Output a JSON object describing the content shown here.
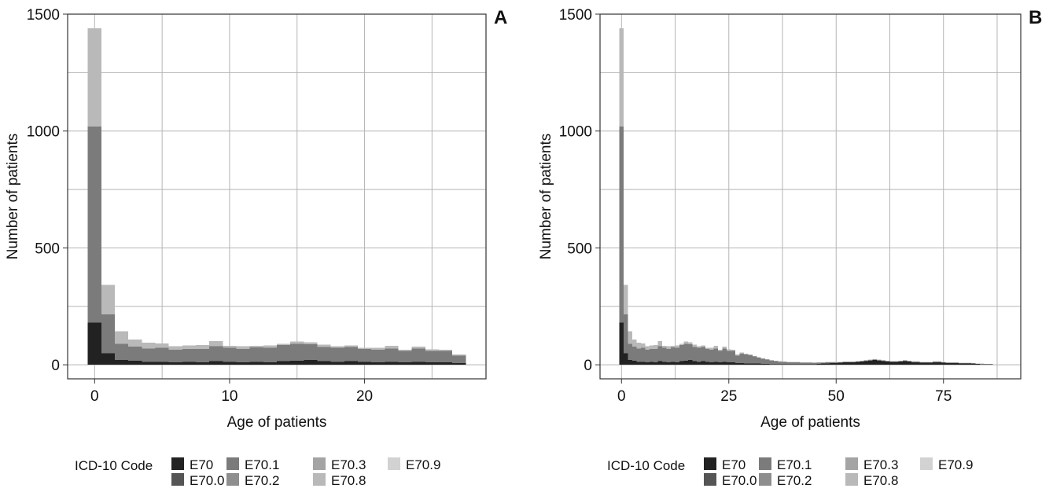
{
  "chart_data": [
    {
      "type": "bar",
      "stacked": true,
      "panel_label": "A",
      "xlabel": "Age of patients",
      "ylabel": "Number of patients",
      "xlim": [
        -2,
        29
      ],
      "ylim": [
        -60,
        1500
      ],
      "x_ticks": [
        0,
        10,
        20
      ],
      "y_ticks": [
        0,
        500,
        1000,
        1500
      ],
      "grid": true,
      "bin_width": 1,
      "x": [
        0,
        1,
        2,
        3,
        4,
        5,
        6,
        7,
        8,
        9,
        10,
        11,
        12,
        13,
        14,
        15,
        16,
        17,
        18,
        19,
        20,
        21,
        22,
        23,
        24,
        25,
        26,
        27
      ],
      "series": [
        {
          "name": "E70",
          "color": "#222222",
          "values": [
            180,
            50,
            20,
            18,
            12,
            12,
            10,
            12,
            10,
            15,
            12,
            10,
            12,
            10,
            15,
            18,
            20,
            15,
            12,
            15,
            12,
            10,
            12,
            10,
            12,
            10,
            10,
            8
          ]
        },
        {
          "name": "E70.0",
          "color": "#555555",
          "values": [
            0,
            0,
            0,
            0,
            0,
            0,
            0,
            0,
            0,
            0,
            0,
            0,
            0,
            0,
            0,
            0,
            0,
            0,
            0,
            0,
            0,
            0,
            0,
            0,
            0,
            0,
            0,
            0
          ]
        },
        {
          "name": "E70.1",
          "color": "#7b7b7b",
          "values": [
            840,
            165,
            70,
            60,
            58,
            60,
            55,
            56,
            58,
            65,
            60,
            58,
            62,
            63,
            70,
            72,
            68,
            62,
            60,
            62,
            55,
            55,
            58,
            50,
            58,
            50,
            50,
            32
          ]
        },
        {
          "name": "E70.2",
          "color": "#8e8e8e",
          "values": [
            0,
            0,
            0,
            0,
            0,
            0,
            0,
            0,
            0,
            0,
            0,
            0,
            0,
            0,
            0,
            0,
            0,
            0,
            0,
            0,
            0,
            0,
            0,
            0,
            0,
            0,
            0,
            0
          ]
        },
        {
          "name": "E70.3",
          "color": "#a4a4a4",
          "values": [
            0,
            0,
            0,
            0,
            0,
            0,
            0,
            0,
            0,
            0,
            0,
            0,
            0,
            0,
            0,
            0,
            0,
            0,
            0,
            0,
            0,
            0,
            0,
            0,
            0,
            0,
            0,
            0
          ]
        },
        {
          "name": "E70.8",
          "color": "#b9b9b9",
          "values": [
            420,
            127,
            53,
            30,
            25,
            20,
            15,
            15,
            17,
            22,
            10,
            12,
            8,
            10,
            5,
            10,
            8,
            10,
            8,
            6,
            6,
            8,
            12,
            5,
            8,
            6,
            5,
            5
          ]
        },
        {
          "name": "E70.9",
          "color": "#d2d2d2",
          "values": [
            0,
            0,
            0,
            0,
            0,
            0,
            0,
            0,
            0,
            0,
            0,
            0,
            0,
            0,
            0,
            0,
            0,
            0,
            0,
            0,
            0,
            0,
            0,
            0,
            0,
            0,
            0,
            0
          ]
        }
      ]
    },
    {
      "type": "bar",
      "stacked": true,
      "panel_label": "B",
      "xlabel": "Age of patients",
      "ylabel": "Number of patients",
      "xlim": [
        -5,
        93
      ],
      "ylim": [
        -60,
        1500
      ],
      "x_ticks": [
        0,
        25,
        50,
        75
      ],
      "y_ticks": [
        0,
        500,
        1000,
        1500
      ],
      "grid": true,
      "bin_width": 1,
      "x": [
        0,
        1,
        2,
        3,
        4,
        5,
        6,
        7,
        8,
        9,
        10,
        11,
        12,
        13,
        14,
        15,
        16,
        17,
        18,
        19,
        20,
        21,
        22,
        23,
        24,
        25,
        26,
        27,
        28,
        29,
        30,
        31,
        32,
        33,
        34,
        35,
        36,
        37,
        38,
        39,
        40,
        41,
        42,
        43,
        44,
        45,
        46,
        47,
        48,
        49,
        50,
        51,
        52,
        53,
        54,
        55,
        56,
        57,
        58,
        59,
        60,
        61,
        62,
        63,
        64,
        65,
        66,
        67,
        68,
        69,
        70,
        71,
        72,
        73,
        74,
        75,
        76,
        77,
        78,
        79,
        80,
        81,
        82,
        83,
        84,
        85,
        86
      ],
      "series": [
        {
          "name": "E70",
          "color": "#222222",
          "values": [
            180,
            50,
            20,
            18,
            12,
            12,
            10,
            12,
            10,
            15,
            12,
            10,
            12,
            10,
            15,
            18,
            20,
            15,
            12,
            15,
            12,
            10,
            12,
            10,
            12,
            10,
            10,
            8,
            8,
            6,
            6,
            5,
            5,
            4,
            4,
            3,
            3,
            3,
            2,
            2,
            2,
            2,
            2,
            3,
            3,
            3,
            4,
            5,
            6,
            7,
            8,
            9,
            10,
            10,
            10,
            12,
            14,
            16,
            18,
            20,
            18,
            16,
            14,
            12,
            12,
            14,
            16,
            14,
            12,
            12,
            10,
            10,
            10,
            12,
            12,
            10,
            8,
            8,
            8,
            6,
            6,
            6,
            5,
            4,
            3,
            2,
            2
          ]
        },
        {
          "name": "E70.0",
          "color": "#555555",
          "values": [
            0,
            0,
            0,
            0,
            0,
            0,
            0,
            0,
            0,
            0,
            0,
            0,
            0,
            0,
            0,
            0,
            0,
            0,
            0,
            0,
            0,
            0,
            0,
            0,
            0,
            0,
            0,
            0,
            0,
            0,
            0,
            0,
            0,
            0,
            0,
            0,
            0,
            0,
            0,
            0,
            0,
            0,
            0,
            0,
            0,
            0,
            0,
            0,
            0,
            0,
            0,
            0,
            0,
            0,
            0,
            0,
            0,
            0,
            0,
            0,
            0,
            0,
            0,
            0,
            0,
            0,
            0,
            0,
            0,
            0,
            0,
            0,
            0,
            0,
            0,
            0,
            0,
            0,
            0,
            0,
            0,
            0,
            0,
            0,
            0,
            0,
            0
          ]
        },
        {
          "name": "E70.1",
          "color": "#7b7b7b",
          "values": [
            840,
            165,
            70,
            60,
            58,
            60,
            55,
            56,
            58,
            65,
            60,
            58,
            62,
            63,
            70,
            72,
            68,
            62,
            60,
            62,
            55,
            55,
            58,
            50,
            58,
            50,
            50,
            32,
            40,
            38,
            35,
            30,
            25,
            22,
            18,
            15,
            12,
            10,
            10,
            8,
            8,
            8,
            7,
            6,
            6,
            5,
            5,
            4,
            4,
            3,
            3,
            2,
            2,
            2,
            2,
            2,
            2,
            2,
            2,
            2,
            2,
            2,
            2,
            2,
            2,
            2,
            2,
            2,
            1,
            1,
            1,
            1,
            1,
            1,
            1,
            1,
            1,
            1,
            1,
            1,
            1,
            1,
            0,
            0,
            0,
            0,
            0
          ]
        },
        {
          "name": "E70.2",
          "color": "#8e8e8e",
          "values": [
            0,
            0,
            0,
            0,
            0,
            0,
            0,
            0,
            0,
            0,
            0,
            0,
            0,
            0,
            0,
            0,
            0,
            0,
            0,
            0,
            0,
            0,
            0,
            0,
            0,
            0,
            0,
            0,
            0,
            0,
            0,
            0,
            0,
            0,
            0,
            0,
            0,
            0,
            0,
            0,
            0,
            0,
            0,
            0,
            0,
            0,
            0,
            0,
            0,
            0,
            0,
            0,
            0,
            0,
            0,
            0,
            0,
            0,
            0,
            0,
            0,
            0,
            0,
            0,
            0,
            0,
            0,
            0,
            0,
            0,
            0,
            0,
            0,
            0,
            0,
            0,
            0,
            0,
            0,
            0,
            0,
            0,
            0,
            0,
            0,
            0,
            0
          ]
        },
        {
          "name": "E70.3",
          "color": "#a4a4a4",
          "values": [
            0,
            0,
            0,
            0,
            0,
            0,
            0,
            0,
            0,
            0,
            0,
            0,
            0,
            0,
            0,
            0,
            0,
            0,
            0,
            0,
            0,
            0,
            0,
            0,
            0,
            0,
            0,
            0,
            0,
            0,
            0,
            0,
            0,
            0,
            0,
            0,
            0,
            0,
            0,
            0,
            0,
            0,
            0,
            0,
            0,
            0,
            0,
            0,
            0,
            0,
            0,
            0,
            0,
            0,
            0,
            0,
            0,
            0,
            0,
            0,
            0,
            0,
            0,
            0,
            0,
            0,
            0,
            0,
            0,
            0,
            0,
            0,
            0,
            0,
            0,
            0,
            0,
            0,
            0,
            0,
            0,
            0,
            0,
            0,
            0,
            0,
            0
          ]
        },
        {
          "name": "E70.8",
          "color": "#b9b9b9",
          "values": [
            420,
            127,
            53,
            30,
            25,
            20,
            15,
            15,
            17,
            22,
            10,
            12,
            8,
            10,
            5,
            10,
            8,
            10,
            8,
            6,
            6,
            8,
            12,
            5,
            8,
            6,
            5,
            5,
            4,
            4,
            3,
            3,
            3,
            2,
            2,
            2,
            2,
            2,
            2,
            2,
            2,
            2,
            2,
            2,
            2,
            2,
            2,
            2,
            2,
            2,
            2,
            2,
            2,
            2,
            2,
            2,
            2,
            2,
            2,
            2,
            2,
            2,
            2,
            2,
            2,
            2,
            2,
            2,
            2,
            2,
            2,
            2,
            2,
            2,
            2,
            2,
            2,
            2,
            2,
            2,
            2,
            2,
            2,
            2,
            2,
            2,
            2
          ]
        },
        {
          "name": "E70.9",
          "color": "#d2d2d2",
          "values": [
            0,
            0,
            0,
            0,
            0,
            0,
            0,
            0,
            0,
            0,
            0,
            0,
            0,
            0,
            0,
            0,
            0,
            0,
            0,
            0,
            0,
            0,
            0,
            0,
            0,
            0,
            0,
            0,
            0,
            0,
            0,
            0,
            0,
            0,
            0,
            0,
            0,
            0,
            0,
            0,
            0,
            0,
            0,
            0,
            0,
            0,
            0,
            0,
            0,
            0,
            0,
            0,
            0,
            0,
            0,
            0,
            0,
            0,
            0,
            0,
            0,
            0,
            0,
            0,
            0,
            0,
            0,
            0,
            0,
            0,
            0,
            0,
            0,
            0,
            0,
            0,
            0,
            0,
            0,
            0,
            0,
            0,
            0,
            0,
            0,
            0,
            0
          ]
        }
      ]
    }
  ],
  "legend": {
    "title": "ICD-10 Code",
    "placement": "bottom",
    "entries": [
      {
        "label": "E70",
        "color": "#222222"
      },
      {
        "label": "E70.0",
        "color": "#555555"
      },
      {
        "label": "E70.1",
        "color": "#7b7b7b"
      },
      {
        "label": "E70.2",
        "color": "#8e8e8e"
      },
      {
        "label": "E70.3",
        "color": "#a4a4a4"
      },
      {
        "label": "E70.8",
        "color": "#b9b9b9"
      },
      {
        "label": "E70.9",
        "color": "#d2d2d2"
      }
    ]
  }
}
